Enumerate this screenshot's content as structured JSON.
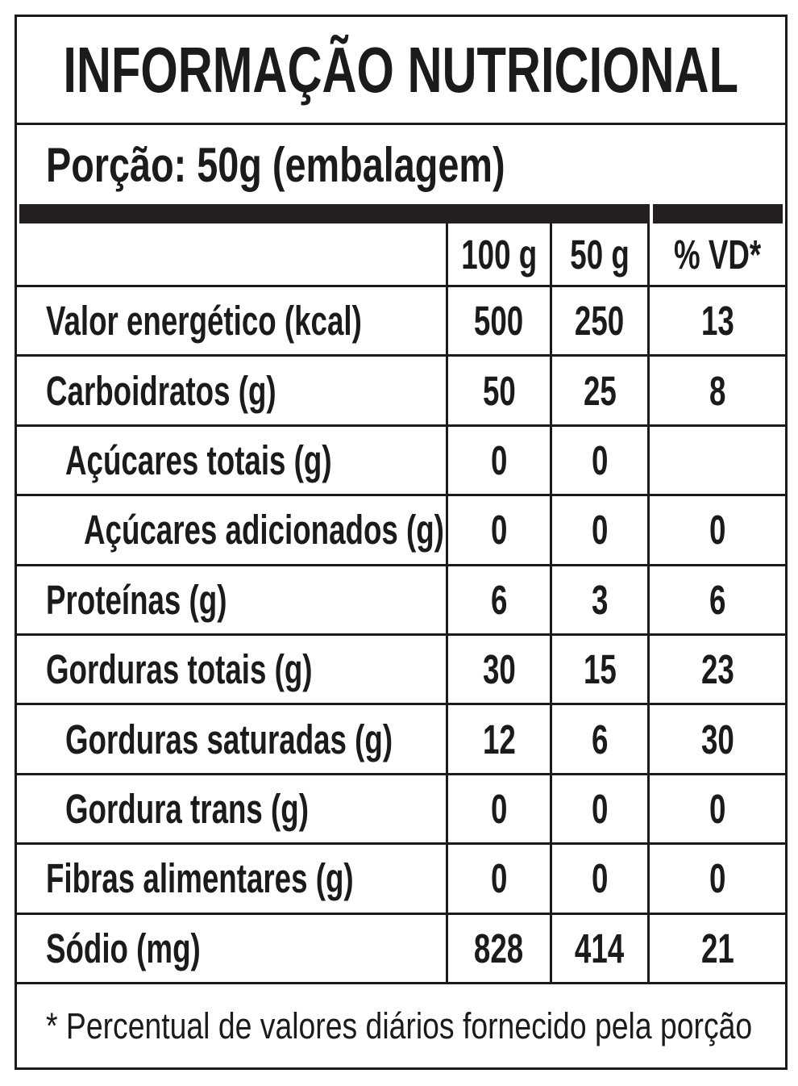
{
  "document": {
    "title": "INFORMAÇÃO NUTRICIONAL",
    "portion_line": "Porção: 50g (embalagem)",
    "footnote": "* Percentual de valores diários fornecido pela porção",
    "table": {
      "column_headers": {
        "nutrient": "",
        "col_100g": "100 g",
        "col_50g": "50 g",
        "col_vd": "% VD*"
      },
      "rows": [
        {
          "name": "Valor energético (kcal)",
          "indent": 0,
          "per_100g": "500",
          "per_50g": "250",
          "pct_vd": "13"
        },
        {
          "name": "Carboidratos (g)",
          "indent": 0,
          "per_100g": "50",
          "per_50g": "25",
          "pct_vd": "8"
        },
        {
          "name": "Açúcares totais (g)",
          "indent": 1,
          "per_100g": "0",
          "per_50g": "0",
          "pct_vd": ""
        },
        {
          "name": "Açúcares adicionados (g)",
          "indent": 2,
          "per_100g": "0",
          "per_50g": "0",
          "pct_vd": "0"
        },
        {
          "name": "Proteínas (g)",
          "indent": 0,
          "per_100g": "6",
          "per_50g": "3",
          "pct_vd": "6"
        },
        {
          "name": "Gorduras totais (g)",
          "indent": 0,
          "per_100g": "30",
          "per_50g": "15",
          "pct_vd": "23"
        },
        {
          "name": "Gorduras saturadas (g)",
          "indent": 1,
          "per_100g": "12",
          "per_50g": "6",
          "pct_vd": "30"
        },
        {
          "name": "Gordura trans (g)",
          "indent": 1,
          "per_100g": "0",
          "per_50g": "0",
          "pct_vd": "0"
        },
        {
          "name": "Fibras alimentares (g)",
          "indent": 0,
          "per_100g": "0",
          "per_50g": "0",
          "pct_vd": "0"
        },
        {
          "name": "Sódio (mg)",
          "indent": 0,
          "per_100g": "828",
          "per_50g": "414",
          "pct_vd": "21"
        }
      ]
    },
    "colors": {
      "text": "#1b1b1b",
      "border": "#1b1b1b",
      "divider_bar": "#231e20",
      "background": "#ffffff"
    }
  }
}
